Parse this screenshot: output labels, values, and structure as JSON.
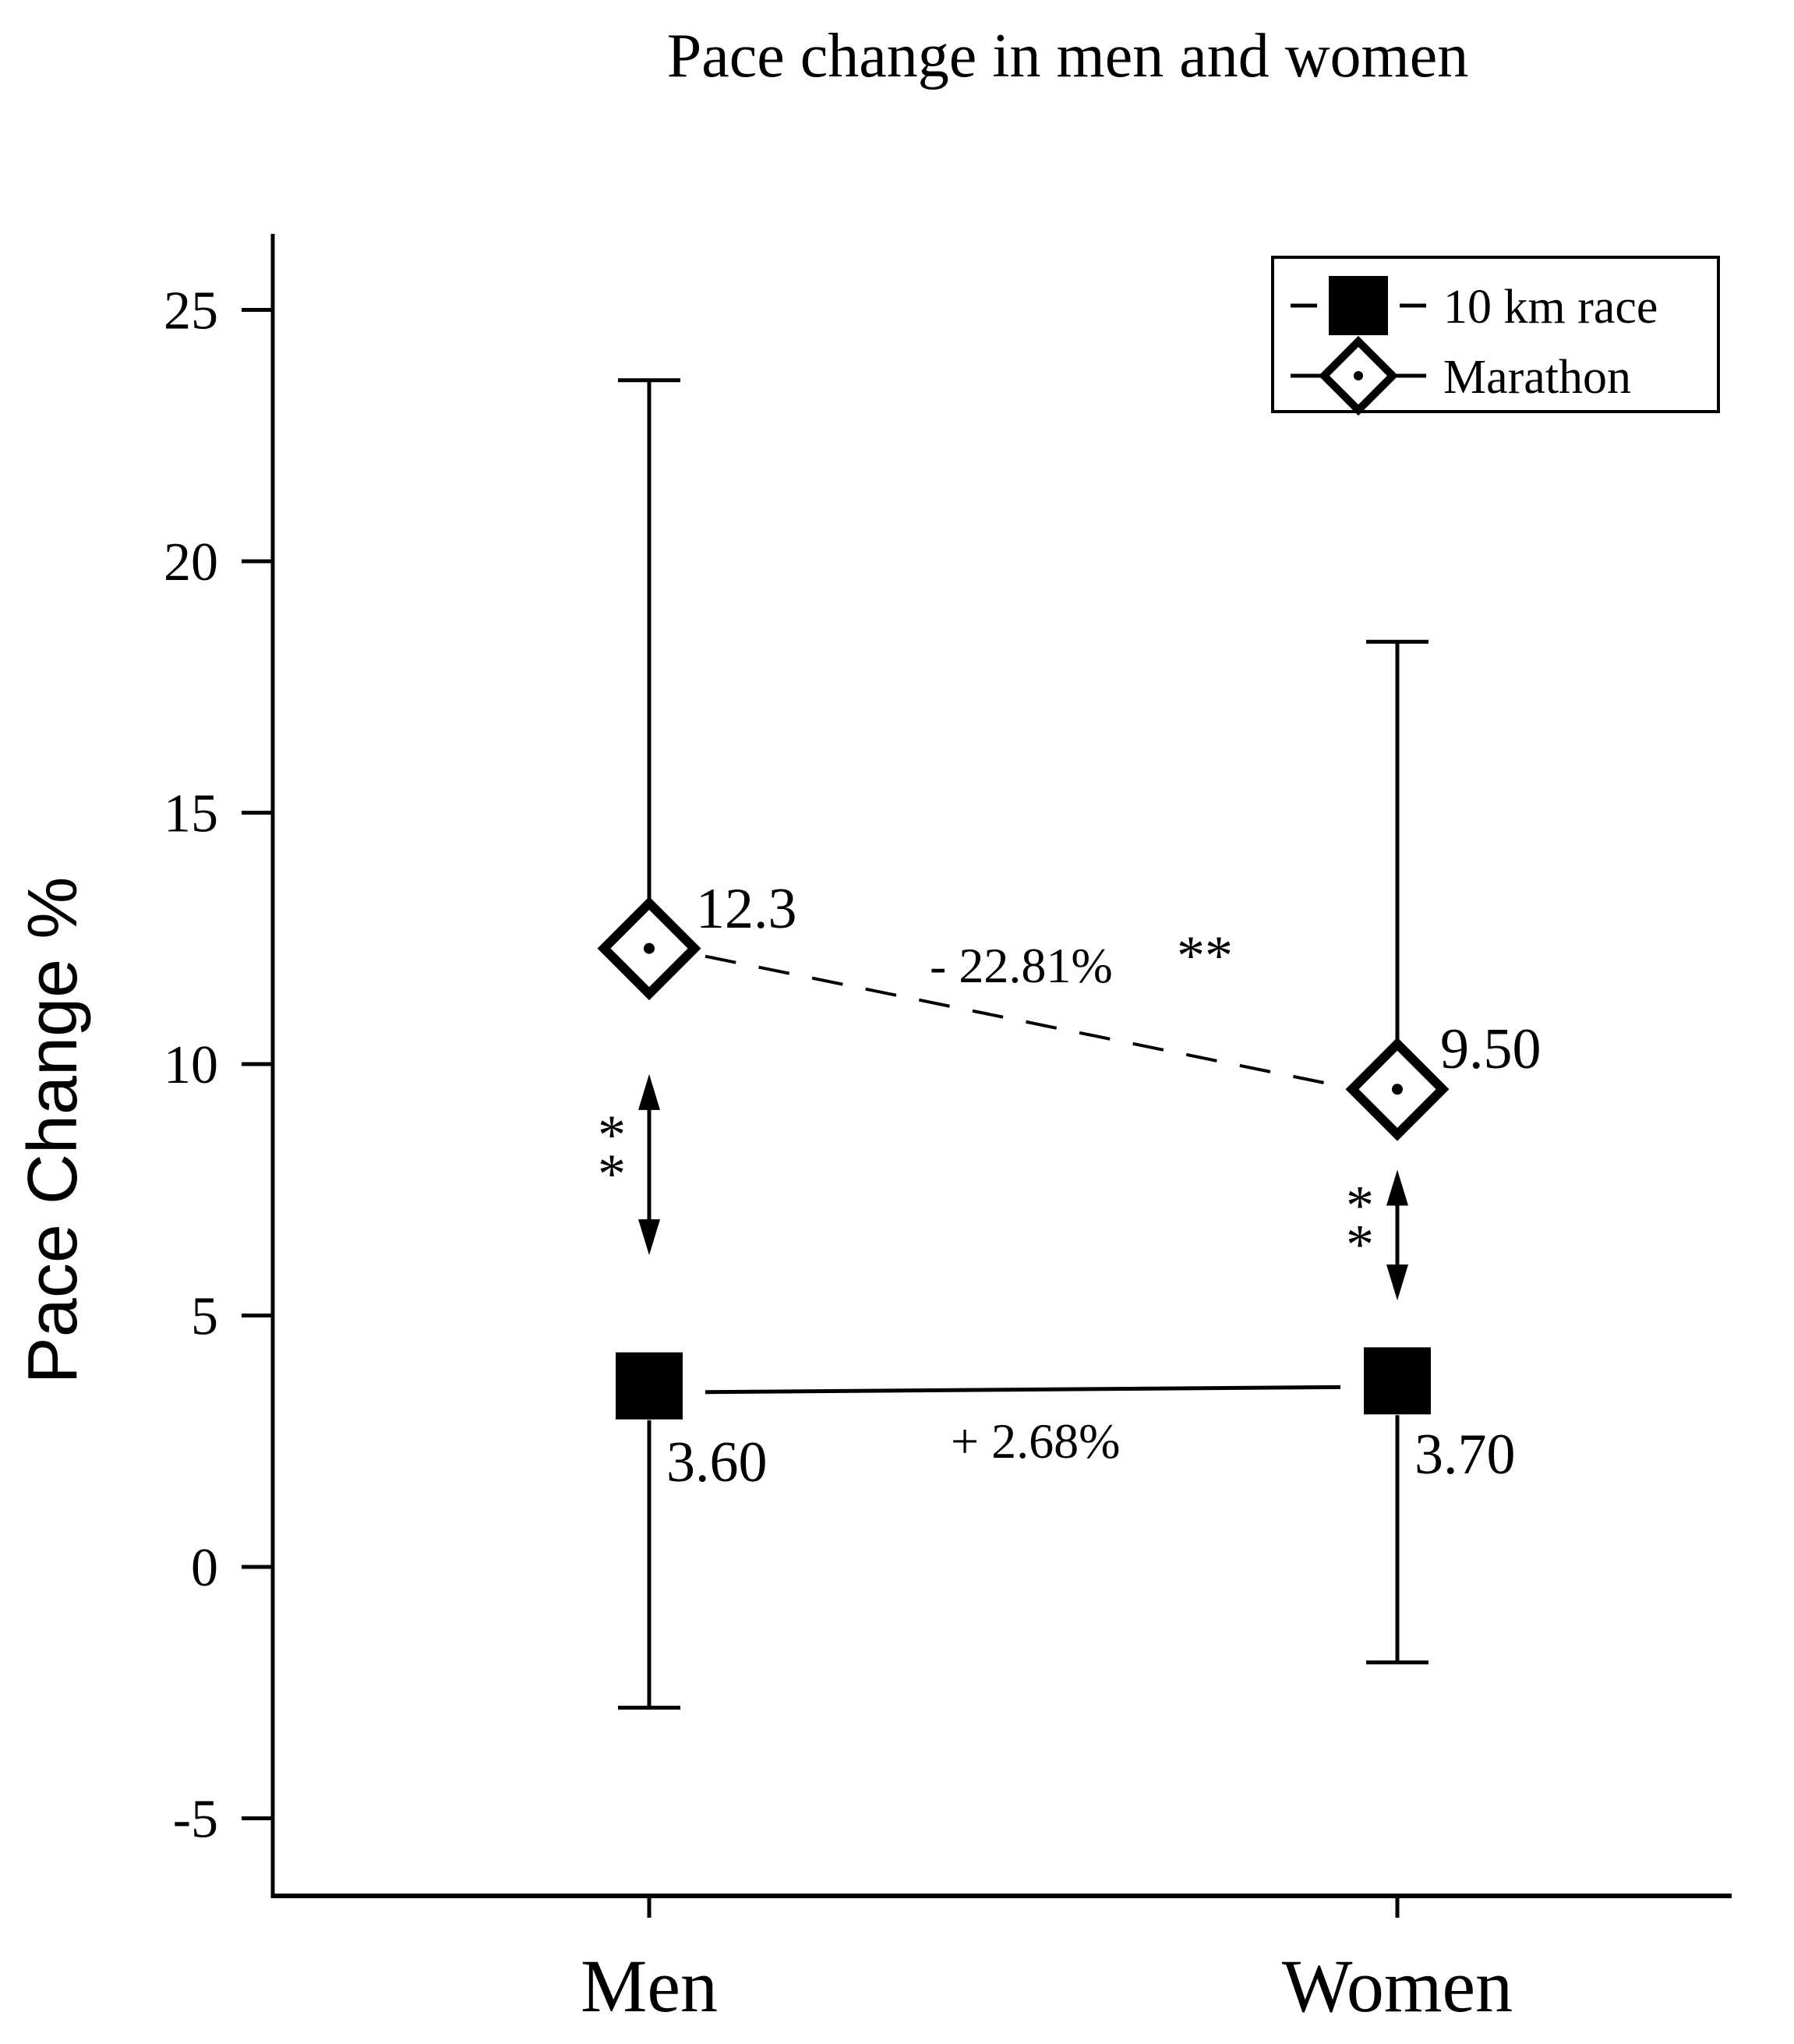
{
  "chart_data": {
    "type": "line",
    "title": "Pace change in men and women",
    "xlabel": "",
    "ylabel": "Pace Change %",
    "categories": [
      "Men",
      "Women"
    ],
    "ylim": [
      -6.5,
      26.5
    ],
    "yticks": [
      -5,
      0,
      5,
      10,
      15,
      20,
      25
    ],
    "ytick_labels": [
      "-5",
      "0",
      "5",
      "10",
      "15",
      "20",
      "25"
    ],
    "grid": false,
    "legend_position": "top-right",
    "series": [
      {
        "name": "10 km race",
        "marker": "filled-square",
        "line_style": "solid",
        "values": [
          3.6,
          3.7
        ],
        "error_upper": [
          null,
          null
        ],
        "error_lower": [
          -2.8,
          -1.9
        ],
        "value_labels": [
          "3.60",
          "3.70"
        ],
        "change_label": "+ 2.68%"
      },
      {
        "name": "Marathon",
        "marker": "hollow-diamond-dot",
        "line_style": "dashed",
        "values": [
          12.3,
          9.5
        ],
        "error_upper": [
          23.6,
          18.4
        ],
        "error_lower": [
          null,
          null
        ],
        "value_labels": [
          "12.3",
          "9.50"
        ],
        "change_label": "- 22.81%",
        "change_sig": "**"
      }
    ],
    "significance": [
      {
        "category": "Men",
        "from": 9.8,
        "to": 6.2,
        "label": "**"
      },
      {
        "category": "Women",
        "from": 7.9,
        "to": 5.3,
        "label": "**"
      }
    ],
    "colors": {
      "ink": "#000000",
      "background": "#ffffff"
    }
  }
}
